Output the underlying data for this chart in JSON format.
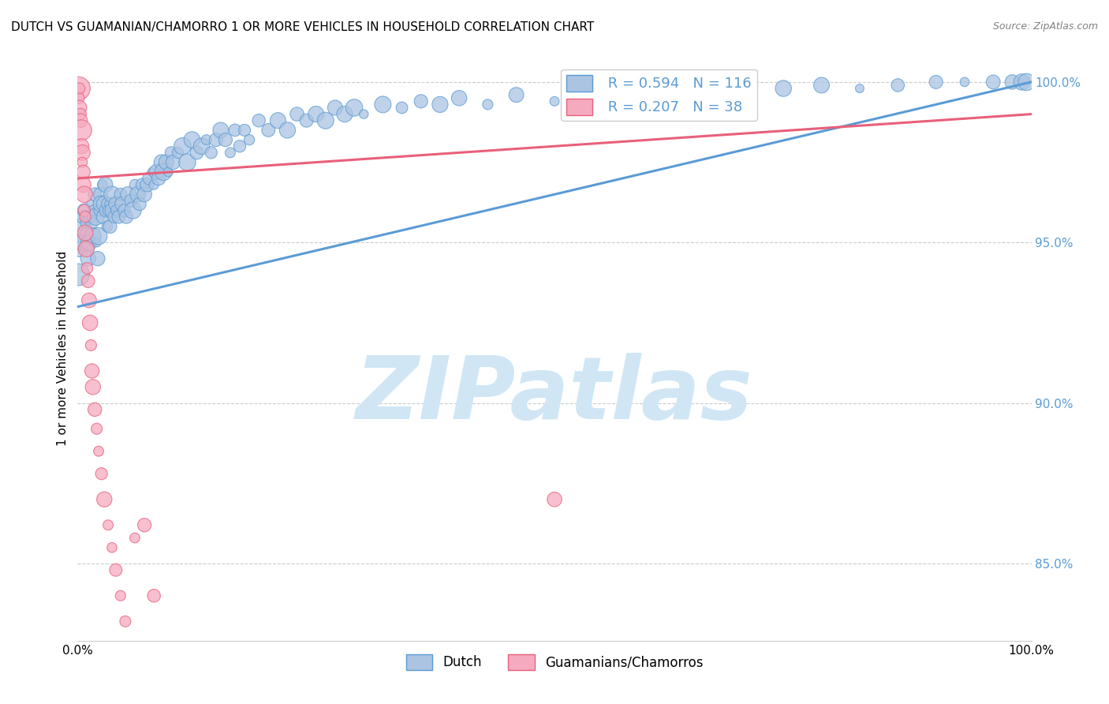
{
  "title": "DUTCH VS GUAMANIAN/CHAMORRO 1 OR MORE VEHICLES IN HOUSEHOLD CORRELATION CHART",
  "source": "Source: ZipAtlas.com",
  "ylabel": "1 or more Vehicles in Household",
  "right_yticks": [
    85.0,
    90.0,
    95.0,
    100.0
  ],
  "legend_blue_label": "Dutch",
  "legend_pink_label": "Guamanians/Chamorros",
  "R_blue": 0.594,
  "N_blue": 116,
  "R_pink": 0.207,
  "N_pink": 38,
  "blue_color": "#aac4e2",
  "pink_color": "#f5aabf",
  "blue_line_color": "#5b9bd5",
  "pink_line_color": "#e8607a",
  "watermark": "ZIPatlas",
  "watermark_color": "#d0e6f5",
  "blue_scatter_x": [
    0.001,
    0.002,
    0.003,
    0.004,
    0.005,
    0.006,
    0.007,
    0.008,
    0.009,
    0.01,
    0.011,
    0.012,
    0.013,
    0.014,
    0.015,
    0.016,
    0.017,
    0.018,
    0.019,
    0.02,
    0.021,
    0.022,
    0.023,
    0.024,
    0.025,
    0.026,
    0.027,
    0.028,
    0.029,
    0.03,
    0.031,
    0.032,
    0.033,
    0.034,
    0.035,
    0.036,
    0.037,
    0.038,
    0.04,
    0.041,
    0.043,
    0.045,
    0.047,
    0.049,
    0.051,
    0.053,
    0.056,
    0.058,
    0.06,
    0.063,
    0.065,
    0.068,
    0.07,
    0.073,
    0.075,
    0.078,
    0.08,
    0.083,
    0.085,
    0.088,
    0.09,
    0.093,
    0.095,
    0.098,
    0.1,
    0.105,
    0.11,
    0.115,
    0.12,
    0.125,
    0.13,
    0.135,
    0.14,
    0.145,
    0.15,
    0.155,
    0.16,
    0.165,
    0.17,
    0.175,
    0.18,
    0.19,
    0.2,
    0.21,
    0.22,
    0.23,
    0.24,
    0.25,
    0.26,
    0.27,
    0.28,
    0.29,
    0.3,
    0.32,
    0.34,
    0.36,
    0.38,
    0.4,
    0.43,
    0.46,
    0.5,
    0.54,
    0.58,
    0.62,
    0.66,
    0.7,
    0.74,
    0.78,
    0.82,
    0.86,
    0.9,
    0.93,
    0.96,
    0.98,
    0.99,
    0.995
  ],
  "blue_scatter_y": [
    0.94,
    0.948,
    0.952,
    0.95,
    0.955,
    0.958,
    0.96,
    0.956,
    0.953,
    0.948,
    0.945,
    0.95,
    0.958,
    0.962,
    0.956,
    0.952,
    0.96,
    0.965,
    0.958,
    0.95,
    0.945,
    0.952,
    0.96,
    0.965,
    0.962,
    0.968,
    0.958,
    0.962,
    0.968,
    0.96,
    0.955,
    0.962,
    0.96,
    0.955,
    0.962,
    0.965,
    0.96,
    0.958,
    0.962,
    0.96,
    0.958,
    0.965,
    0.962,
    0.96,
    0.958,
    0.965,
    0.963,
    0.96,
    0.968,
    0.965,
    0.962,
    0.968,
    0.965,
    0.968,
    0.97,
    0.972,
    0.968,
    0.972,
    0.97,
    0.975,
    0.972,
    0.975,
    0.972,
    0.978,
    0.975,
    0.978,
    0.98,
    0.975,
    0.982,
    0.978,
    0.98,
    0.982,
    0.978,
    0.982,
    0.985,
    0.982,
    0.978,
    0.985,
    0.98,
    0.985,
    0.982,
    0.988,
    0.985,
    0.988,
    0.985,
    0.99,
    0.988,
    0.99,
    0.988,
    0.992,
    0.99,
    0.992,
    0.99,
    0.993,
    0.992,
    0.994,
    0.993,
    0.995,
    0.993,
    0.996,
    0.994,
    0.996,
    0.997,
    0.996,
    0.998,
    0.997,
    0.998,
    0.999,
    0.998,
    0.999,
    1.0,
    1.0,
    1.0,
    1.0,
    1.0,
    1.0
  ],
  "pink_scatter_x": [
    0.001,
    0.001,
    0.002,
    0.002,
    0.003,
    0.003,
    0.004,
    0.004,
    0.005,
    0.005,
    0.006,
    0.006,
    0.007,
    0.007,
    0.008,
    0.008,
    0.009,
    0.01,
    0.011,
    0.012,
    0.013,
    0.014,
    0.015,
    0.016,
    0.018,
    0.02,
    0.022,
    0.025,
    0.028,
    0.032,
    0.036,
    0.04,
    0.045,
    0.05,
    0.06,
    0.07,
    0.5,
    0.08
  ],
  "pink_scatter_y": [
    0.998,
    0.995,
    0.992,
    0.998,
    0.99,
    0.988,
    0.985,
    0.98,
    0.978,
    0.975,
    0.972,
    0.968,
    0.965,
    0.96,
    0.958,
    0.953,
    0.948,
    0.942,
    0.938,
    0.932,
    0.925,
    0.918,
    0.91,
    0.905,
    0.898,
    0.892,
    0.885,
    0.878,
    0.87,
    0.862,
    0.855,
    0.848,
    0.84,
    0.832,
    0.858,
    0.862,
    0.87,
    0.84
  ],
  "xlim": [
    0.0,
    1.0
  ],
  "ylim": [
    0.826,
    1.008
  ],
  "blue_trend_y_start": 0.93,
  "blue_trend_y_end": 1.0,
  "pink_trend_y_start": 0.97,
  "pink_trend_y_end": 0.99
}
